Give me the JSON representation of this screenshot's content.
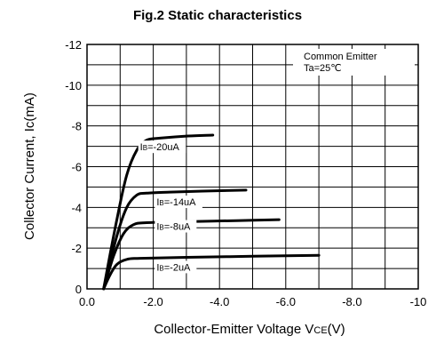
{
  "chart_data": {
    "type": "line",
    "title": "Fig.2  Static characteristics",
    "xlabel": "Collector-Emitter Voltage VCE(V)",
    "xlabel_main": "Collector-Emitter Voltage V",
    "xlabel_sub": "CE",
    "xlabel_unit": "(V)",
    "ylabel": "Collector Current, Ic(mA)",
    "xlim": [
      0,
      -10
    ],
    "ylim": [
      0,
      -12
    ],
    "x_ticks": [
      "0.0",
      "-2.0",
      "-4.0",
      "-6.0",
      "-8.0",
      "-10"
    ],
    "y_ticks": [
      "0",
      "-2",
      "-4",
      "-6",
      "-8",
      "-10",
      "-12"
    ],
    "grid": true,
    "annotations": [
      "Common Emitter",
      "Ta=25℃"
    ],
    "series": [
      {
        "label_prefix": "I",
        "label_sub": "B",
        "label_value": "=-20uA",
        "label_anchor": [
          -1.6,
          -6.8
        ],
        "points": [
          [
            -0.5,
            0
          ],
          [
            -0.9,
            -3.4
          ],
          [
            -1.2,
            -5.6
          ],
          [
            -1.5,
            -6.8
          ],
          [
            -1.8,
            -7.3
          ],
          [
            -2.2,
            -7.4
          ],
          [
            -3,
            -7.5
          ],
          [
            -3.8,
            -7.55
          ]
        ]
      },
      {
        "label_prefix": "I",
        "label_sub": "B",
        "label_value": "=-14uA",
        "label_anchor": [
          -2.1,
          -4.1
        ],
        "points": [
          [
            -0.5,
            0
          ],
          [
            -0.9,
            -2.6
          ],
          [
            -1.2,
            -4.0
          ],
          [
            -1.5,
            -4.6
          ],
          [
            -1.8,
            -4.7
          ],
          [
            -2.5,
            -4.75
          ],
          [
            -3.5,
            -4.8
          ],
          [
            -4.8,
            -4.85
          ]
        ]
      },
      {
        "label_prefix": "I",
        "label_sub": "B",
        "label_value": "=-8uA",
        "label_anchor": [
          -2.1,
          -2.9
        ],
        "points": [
          [
            -0.5,
            0
          ],
          [
            -0.8,
            -1.6
          ],
          [
            -1.1,
            -2.7
          ],
          [
            -1.4,
            -3.15
          ],
          [
            -1.8,
            -3.25
          ],
          [
            -3,
            -3.3
          ],
          [
            -4.5,
            -3.35
          ],
          [
            -5.8,
            -3.4
          ]
        ]
      },
      {
        "label_prefix": "I",
        "label_sub": "B",
        "label_value": "=-2uA",
        "label_anchor": [
          -2.1,
          -0.9
        ],
        "points": [
          [
            -0.5,
            0
          ],
          [
            -0.7,
            -0.7
          ],
          [
            -0.9,
            -1.2
          ],
          [
            -1.2,
            -1.45
          ],
          [
            -1.6,
            -1.5
          ],
          [
            -3,
            -1.55
          ],
          [
            -5,
            -1.6
          ],
          [
            -7,
            -1.65
          ]
        ]
      }
    ]
  }
}
